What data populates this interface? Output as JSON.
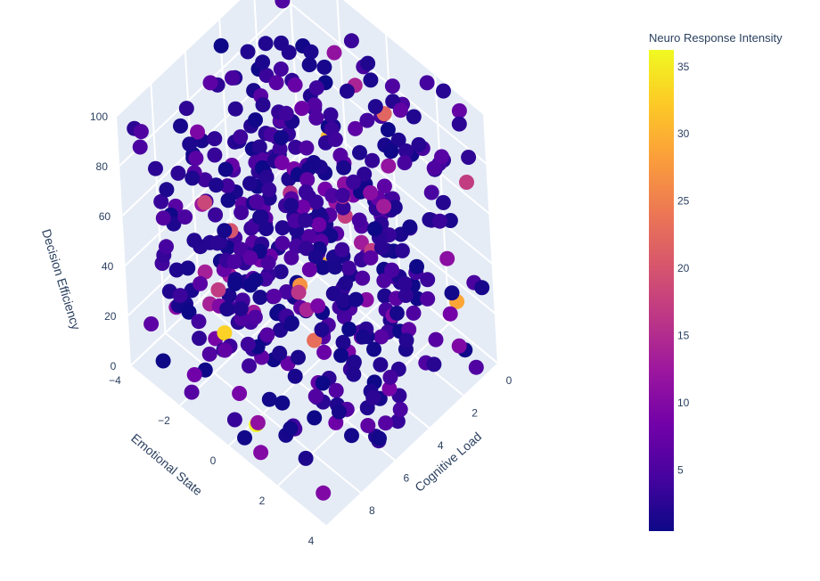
{
  "chart_data": {
    "type": "scatter",
    "dimensions": 3,
    "x_label": "Cognitive Load",
    "y_label": "Emotional State",
    "z_label": "Decision Efficiency",
    "color_label": "Neuro Response Intensity",
    "x_ticks": [
      "0",
      "2",
      "4",
      "6",
      "8"
    ],
    "y_ticks": [
      "−4",
      "−2",
      "0",
      "2",
      "4"
    ],
    "z_ticks": [
      "0",
      "20",
      "40",
      "60",
      "80",
      "100"
    ],
    "x_range": [
      0,
      10
    ],
    "y_range": [
      -4,
      4
    ],
    "z_range": [
      0,
      100
    ],
    "color_ticks": [
      5,
      10,
      15,
      20,
      25,
      30,
      35
    ],
    "color_range": [
      0.5,
      36.3
    ],
    "colorscale": [
      "#0d0887",
      "#46039f",
      "#7201a8",
      "#9c179e",
      "#bd3786",
      "#d8576b",
      "#ed7953",
      "#fb9f3a",
      "#fdca26",
      "#f0f921"
    ],
    "pane_color": "#e5ecf6",
    "grid_color": "#ffffff",
    "point_count": 500,
    "notable_points": [
      {
        "x": 9.2,
        "y": 0.6,
        "z": 8,
        "intensity": 36
      },
      {
        "x": 8.6,
        "y": -1.0,
        "z": 28,
        "intensity": 33
      },
      {
        "x": 1.2,
        "y": -1.8,
        "z": 52,
        "intensity": 31
      },
      {
        "x": 4.8,
        "y": 0.4,
        "z": 42,
        "intensity": 30
      },
      {
        "x": 0.8,
        "y": 3.0,
        "z": 22,
        "intensity": 29
      },
      {
        "x": 7.5,
        "y": 1.5,
        "z": 60,
        "intensity": 27
      },
      {
        "x": 1.9,
        "y": 1.2,
        "z": 90,
        "intensity": 22
      },
      {
        "x": 0.5,
        "y": -3.2,
        "z": 10,
        "intensity": 19
      },
      {
        "x": 5.6,
        "y": -2.8,
        "z": 35,
        "intensity": 20
      }
    ]
  }
}
